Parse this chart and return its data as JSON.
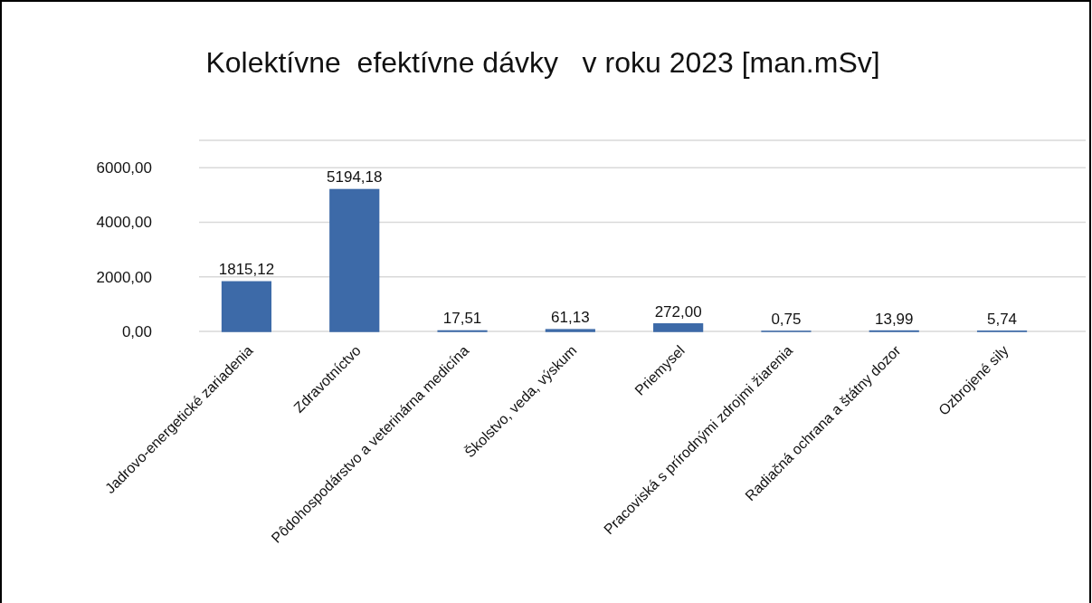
{
  "chart_data": {
    "type": "bar",
    "title": "Kolektívne  efektívne dávky   v roku 2023 [man.mSv]",
    "categories": [
      "Jadrovo-energetické zariadenia",
      "Zdravotníctvo",
      "Pôdohospodárstvo a veterinárna medicína",
      "Školstvo, veda, výskum",
      "Priemysel",
      "Pracoviská s prírodnými zdrojmi žiarenia",
      "Radiačná ochrana a štátny dozor",
      "Ozbrojené sily"
    ],
    "values": [
      1815.12,
      5194.18,
      17.51,
      61.13,
      272.0,
      0.75,
      13.99,
      5.74
    ],
    "value_labels": [
      "1815,12",
      "5194,18",
      "17,51",
      "61,13",
      "272,00",
      "0,75",
      "13,99",
      "5,74"
    ],
    "color": "#3d6aa8",
    "ylim": [
      0,
      7000
    ],
    "yticks": [
      {
        "value": 0,
        "label": "0,00"
      },
      {
        "value": 2000,
        "label": "2000,00"
      },
      {
        "value": 4000,
        "label": "4000,00"
      },
      {
        "value": 6000,
        "label": "6000,00"
      },
      {
        "value": 7000,
        "label": null
      }
    ],
    "grid": "y"
  }
}
